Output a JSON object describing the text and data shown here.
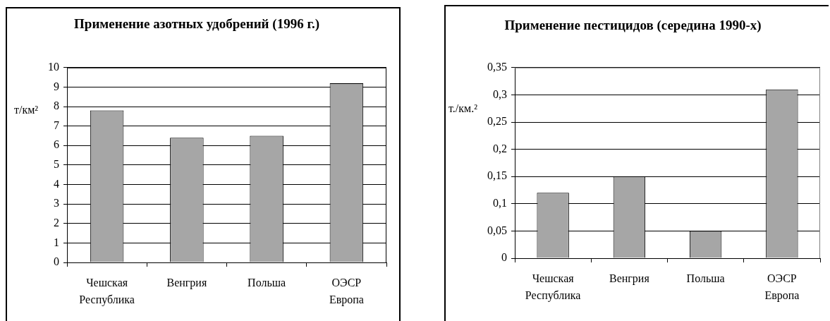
{
  "chart_data": [
    {
      "type": "bar",
      "title": "Применение азотных удобрений (1996 г.)",
      "ylabel": "т/км²",
      "categories": [
        "Чешская Республика",
        "Венгрия",
        "Польша",
        "ОЭСР Европа"
      ],
      "values": [
        7.8,
        6.4,
        6.5,
        9.2
      ],
      "color": "#a6a6a6",
      "ylim": [
        0,
        10
      ],
      "yticks": [
        0,
        1,
        2,
        3,
        4,
        5,
        6,
        7,
        8,
        9,
        10
      ],
      "grid": "y"
    },
    {
      "type": "bar",
      "title": "Применение пестицидов (середина 1990-х)",
      "ylabel": "т./км.²",
      "categories": [
        "Чешская Республика",
        "Венгрия",
        "Польша",
        "ОЭСР Европа"
      ],
      "values": [
        0.12,
        0.15,
        0.05,
        0.31
      ],
      "color": "#a6a6a6",
      "ylim": [
        0,
        0.35
      ],
      "yticks": [
        0,
        {
          "value": 0.05,
          "label": "0,05"
        },
        {
          "value": 0.1,
          "label": "0,1"
        },
        {
          "value": 0.15,
          "label": "0,15"
        },
        {
          "value": 0.2,
          "label": "0,2"
        },
        {
          "value": 0.25,
          "label": "0,25"
        },
        {
          "value": 0.3,
          "label": "0,3"
        },
        {
          "value": 0.35,
          "label": "0,35"
        }
      ],
      "grid": "y"
    }
  ]
}
